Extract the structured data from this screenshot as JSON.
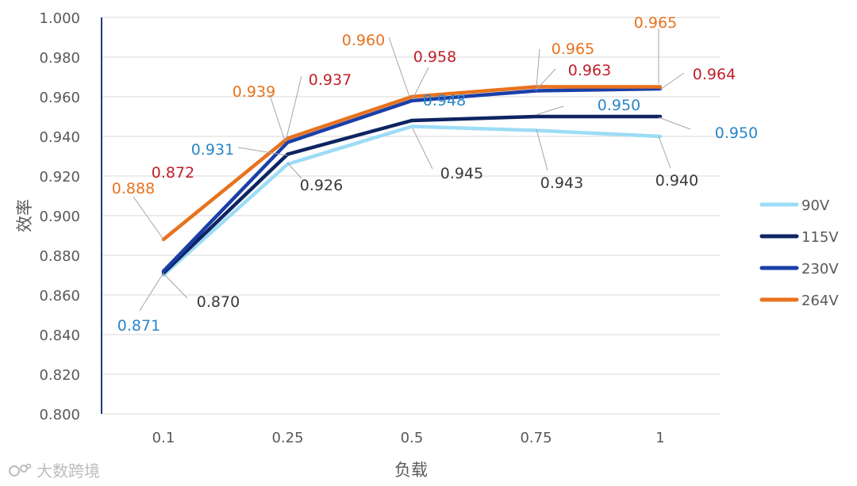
{
  "chart_data": {
    "type": "line",
    "title": "",
    "xlabel": "负载",
    "ylabel": "效率",
    "categories": [
      "0.1",
      "0.25",
      "0.5",
      "0.75",
      "1"
    ],
    "ylim": [
      0.8,
      1.0
    ],
    "yticks": [
      "0.800",
      "0.820",
      "0.840",
      "0.860",
      "0.880",
      "0.900",
      "0.920",
      "0.940",
      "0.960",
      "0.980",
      "1.000"
    ],
    "grid": true,
    "legend_position": "right",
    "series": [
      {
        "name": "90V",
        "color": "#9ddcf5",
        "values": [
          0.87,
          0.926,
          0.945,
          0.943,
          0.94
        ],
        "labels": [
          "0.870",
          "0.926",
          "0.945",
          "0.943",
          "0.940"
        ],
        "label_color": "#3a3a3a"
      },
      {
        "name": "115V",
        "color": "#0e2461",
        "values": [
          0.871,
          0.931,
          0.948,
          0.95,
          0.95
        ],
        "labels": [
          "0.871",
          "0.931",
          "0.948",
          "0.950",
          "0.950"
        ],
        "label_color": "#2a86c8"
      },
      {
        "name": "230V",
        "color": "#1a3fa8",
        "values": [
          0.872,
          0.937,
          0.958,
          0.963,
          0.964
        ],
        "labels": [
          "0.872",
          "0.937",
          "0.958",
          "0.963",
          "0.964"
        ],
        "label_color": "#c0202a"
      },
      {
        "name": "264V",
        "color": "#e8721e",
        "values": [
          0.888,
          0.939,
          0.96,
          0.965,
          0.965
        ],
        "labels": [
          "0.888",
          "0.939",
          "0.960",
          "0.965",
          "0.965"
        ],
        "label_color": "#e8721e"
      }
    ]
  },
  "watermark": {
    "text": "大数跨境"
  }
}
